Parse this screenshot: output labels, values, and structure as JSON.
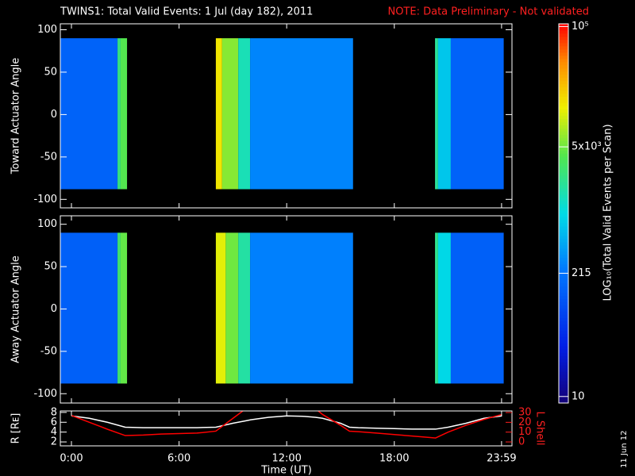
{
  "header": {
    "title": "TWINS1: Total Valid Events:  1 Jul (day 182), 2011",
    "note": "NOTE: Data Preliminary - Not validated",
    "side_date": "11 Jun 12"
  },
  "colorbar": {
    "label": "LOG₁₀(Total Valid Events per Scan)",
    "log": true,
    "clim": [
      8.5,
      107000
    ],
    "ticks": [
      10,
      215,
      {
        "value": 5000,
        "label": "5x10³"
      },
      {
        "value": 100000,
        "label": "10⁵"
      }
    ]
  },
  "chart_data": [
    {
      "type": "heatmap",
      "ylabel": "Toward Actuator Angle",
      "xlim": [
        -0.62,
        24.56
      ],
      "ylim": [
        -110,
        107
      ],
      "yticks": [
        -100,
        -50,
        0,
        50,
        100
      ],
      "angle_extent": [
        -88,
        90
      ],
      "blocks": [
        {
          "start": -0.62,
          "end": 2.57,
          "level": 150
        },
        {
          "start": 2.57,
          "end": 2.74,
          "level": 2500
        },
        {
          "start": 2.74,
          "end": 3.1,
          "level": 4000
        },
        {
          "start": 8.05,
          "end": 8.4,
          "level": 15000
        },
        {
          "start": 8.4,
          "end": 9.3,
          "level": 6000
        },
        {
          "start": 9.3,
          "end": 9.96,
          "level": 1500
        },
        {
          "start": 9.96,
          "end": 15.7,
          "level": 280
        },
        {
          "start": 20.27,
          "end": 20.44,
          "level": 2000
        },
        {
          "start": 20.44,
          "end": 21.15,
          "level": 700
        },
        {
          "start": 21.15,
          "end": 24.1,
          "level": 150
        }
      ]
    },
    {
      "type": "heatmap",
      "ylabel": "Away Actuator Angle",
      "xlim": [
        -0.62,
        24.56
      ],
      "ylim": [
        -111,
        110
      ],
      "yticks": [
        -100,
        -50,
        0,
        50,
        100
      ],
      "angle_extent": [
        -88,
        90
      ],
      "blocks": [
        {
          "start": -0.62,
          "end": 2.57,
          "level": 140
        },
        {
          "start": 2.57,
          "end": 2.74,
          "level": 3000
        },
        {
          "start": 2.74,
          "end": 3.1,
          "level": 4500
        },
        {
          "start": 8.05,
          "end": 8.6,
          "level": 12000
        },
        {
          "start": 8.6,
          "end": 9.3,
          "level": 5000
        },
        {
          "start": 9.3,
          "end": 9.96,
          "level": 1800
        },
        {
          "start": 9.96,
          "end": 15.7,
          "level": 260
        },
        {
          "start": 20.27,
          "end": 20.44,
          "level": 2200
        },
        {
          "start": 20.44,
          "end": 21.15,
          "level": 900
        },
        {
          "start": 21.15,
          "end": 24.1,
          "level": 140
        }
      ]
    },
    {
      "type": "line",
      "ylabel": "R [Rᴇ]",
      "y2label": "L Shell",
      "xlabel": "Time (UT)",
      "xlim": [
        -0.62,
        24.56
      ],
      "ylim": [
        1.2,
        8.3
      ],
      "yticks": [
        2,
        4,
        6,
        8
      ],
      "y2lim": [
        -4,
        31.6
      ],
      "y2ticks": [
        0,
        10,
        20,
        30
      ],
      "xticks": [
        {
          "value": 0,
          "label": "0:00"
        },
        {
          "value": 6,
          "label": "6:00"
        },
        {
          "value": 12,
          "label": "12:00"
        },
        {
          "value": 18,
          "label": "18:00"
        },
        {
          "value": 23.98,
          "label": "23:59"
        }
      ],
      "x": [
        0,
        1,
        2,
        3,
        4,
        5,
        6,
        7,
        8.05,
        9,
        9.73,
        10,
        11,
        12,
        13,
        13.6,
        14,
        15,
        15.5,
        16,
        17,
        18,
        19,
        20,
        20.3,
        21,
        22,
        23,
        24
      ],
      "series": [
        {
          "color": "#ffffff",
          "values": [
            7.3,
            6.8,
            6.0,
            5.0,
            4.9,
            4.9,
            4.9,
            4.9,
            5.0,
            5.8,
            6.3,
            6.5,
            7.0,
            7.3,
            7.2,
            7.0,
            6.8,
            5.8,
            5.0,
            4.9,
            4.8,
            4.7,
            4.6,
            4.6,
            4.6,
            5.0,
            5.8,
            6.8,
            7.3
          ]
        },
        {
          "color": "#ff0000",
          "axis": "y2",
          "values": [
            27,
            20,
            13,
            6.5,
            7,
            8,
            8.5,
            9,
            11,
            24,
            34,
            null,
            null,
            null,
            null,
            34,
            28,
            17,
            11,
            10.5,
            9,
            7.5,
            6,
            4.5,
            4,
            10,
            17,
            23,
            28
          ]
        }
      ]
    }
  ]
}
